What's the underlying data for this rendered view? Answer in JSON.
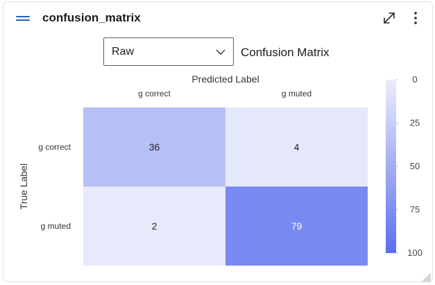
{
  "card": {
    "title": "confusion_matrix"
  },
  "controls": {
    "mode_select": {
      "value": "Raw"
    }
  },
  "chart_data": {
    "type": "heatmap",
    "title": "Confusion Matrix",
    "xlabel": "Predicted Label",
    "ylabel": "True Label",
    "x_categories": [
      "g correct",
      "g muted"
    ],
    "y_categories": [
      "g correct",
      "g muted"
    ],
    "values": [
      [
        36,
        4
      ],
      [
        2,
        79
      ]
    ],
    "colorbar": {
      "min": 0,
      "max": 100,
      "ticks": [
        0,
        25,
        50,
        75,
        100
      ]
    },
    "colors": {
      "low": "#ebedfb",
      "high": "#5b6ef0",
      "text_dark": "#222222",
      "text_light": "#ffffff"
    }
  }
}
